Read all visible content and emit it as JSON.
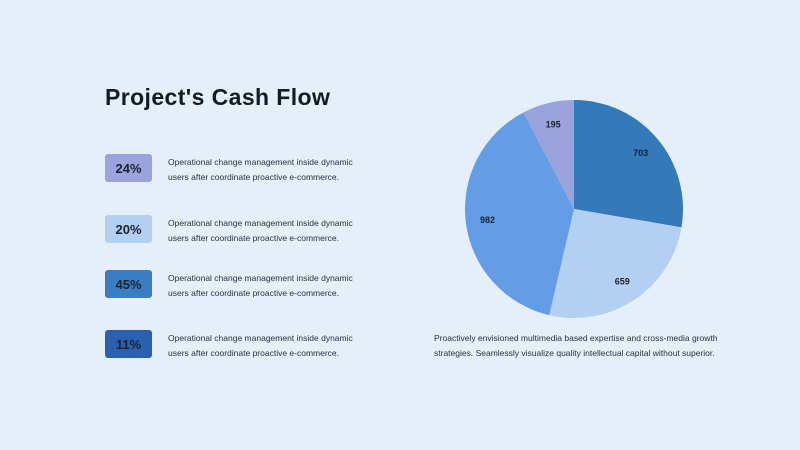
{
  "title": "Project's Cash Flow",
  "stats": [
    {
      "percent": "24%",
      "line1": "Operational change management inside dynamic",
      "line2": "users after coordinate proactive e-commerce.",
      "badge_color": "#9aa3dc",
      "text_color": "#1b2230"
    },
    {
      "percent": "20%",
      "line1": "Operational change management inside dynamic",
      "line2": "users after coordinate proactive e-commerce.",
      "badge_color": "#b3cff1",
      "text_color": "#1b2230"
    },
    {
      "percent": "45%",
      "line1": "Operational change management inside dynamic",
      "line2": "users after coordinate proactive e-commerce.",
      "badge_color": "#3a7dc0",
      "text_color": "#1b2230"
    },
    {
      "percent": "11%",
      "line1": "Operational change management inside dynamic",
      "line2": "users after coordinate proactive e-commerce.",
      "badge_color": "#2b60b0",
      "text_color": "#1b2230"
    }
  ],
  "caption": {
    "line1": "Proactively envisioned multimedia based expertise and cross-media growth",
    "line2": "strategies. Seamlessly visualize quality intellectual capital without superior."
  },
  "chart_data": {
    "type": "pie",
    "title": "",
    "start": "12 o'clock, clockwise",
    "slices": [
      {
        "label": "703",
        "value": 703,
        "color": "#3479ba"
      },
      {
        "label": "659",
        "value": 659,
        "color": "#b3cff1"
      },
      {
        "label": "982",
        "value": 982,
        "color": "#649de6"
      },
      {
        "label": "195",
        "value": 195,
        "color": "#9aa3dc"
      }
    ]
  }
}
